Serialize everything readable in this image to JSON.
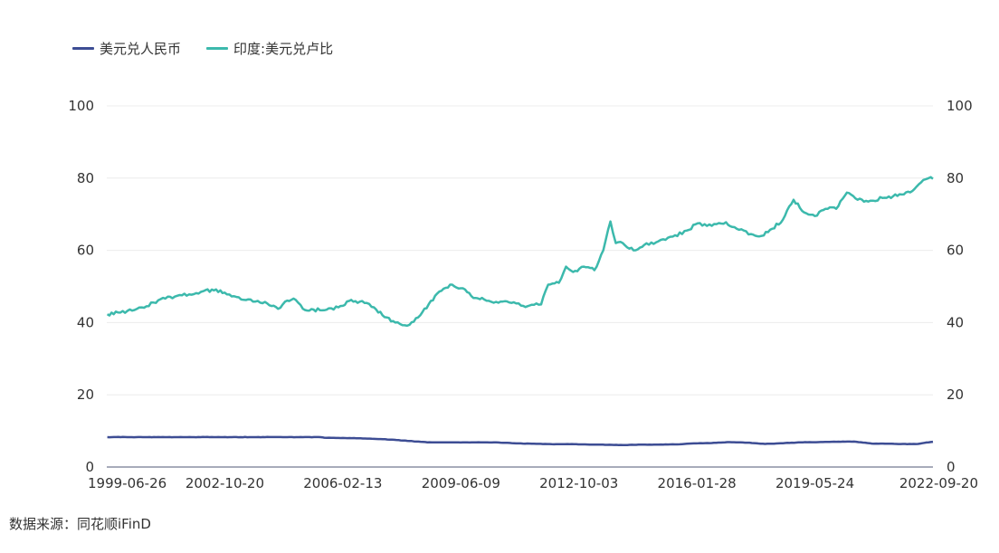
{
  "legend": {
    "items": [
      {
        "label": "美元兑人民币",
        "color": "#3d4d94"
      },
      {
        "label": "印度:美元兑卢比",
        "color": "#3cb9ac"
      }
    ]
  },
  "source": "数据来源：同花顺iFinD",
  "chart_data": {
    "type": "line",
    "title": "",
    "xlabel": "",
    "ylabel": "",
    "x_ticks": [
      "1999-06-26",
      "2002-10-20",
      "2006-02-13",
      "2009-06-09",
      "2012-10-03",
      "2016-01-28",
      "2019-05-24",
      "2022-09-20"
    ],
    "y_left_ticks": [
      0,
      20,
      40,
      60,
      80,
      100
    ],
    "y_right_ticks": [
      0,
      20,
      40,
      60,
      80,
      100
    ],
    "ylim": [
      0,
      100
    ],
    "grid": true,
    "legend_position": "top-left",
    "series": [
      {
        "name": "美元兑人民币",
        "axis": "left",
        "x": [
          1999.5,
          2000.5,
          2001.5,
          2002.5,
          2003.5,
          2004.5,
          2005.5,
          2005.6,
          2006.0,
          2006.5,
          2007.0,
          2007.5,
          2008.0,
          2008.5,
          2009.0,
          2010.0,
          2010.5,
          2011.0,
          2011.5,
          2012.0,
          2012.5,
          2013.0,
          2013.5,
          2014.0,
          2014.5,
          2015.0,
          2015.6,
          2016.0,
          2016.5,
          2017.0,
          2017.5,
          2018.0,
          2018.5,
          2019.0,
          2019.5,
          2020.0,
          2020.5,
          2021.0,
          2021.5,
          2022.0,
          2022.3,
          2022.6,
          2022.72
        ],
        "values": [
          8.28,
          8.28,
          8.28,
          8.28,
          8.28,
          8.28,
          8.28,
          8.11,
          8.05,
          7.98,
          7.8,
          7.6,
          7.2,
          6.85,
          6.83,
          6.83,
          6.78,
          6.55,
          6.45,
          6.32,
          6.35,
          6.25,
          6.15,
          6.1,
          6.18,
          6.2,
          6.3,
          6.55,
          6.65,
          6.9,
          6.75,
          6.4,
          6.6,
          6.85,
          6.9,
          7.0,
          7.05,
          6.5,
          6.45,
          6.35,
          6.4,
          6.85,
          7.0
        ]
      },
      {
        "name": "印度:美元兑卢比",
        "axis": "right",
        "x": [
          1999.5,
          1999.8,
          2000.2,
          2000.6,
          2001.0,
          2001.4,
          2001.8,
          2002.2,
          2002.5,
          2002.8,
          2003.2,
          2003.6,
          2004.0,
          2004.3,
          2004.5,
          2004.8,
          2005.0,
          2005.3,
          2005.6,
          2006.0,
          2006.3,
          2006.6,
          2007.0,
          2007.3,
          2007.6,
          2008.0,
          2008.3,
          2008.6,
          2008.9,
          2009.2,
          2009.5,
          2009.8,
          2010.1,
          2010.5,
          2010.8,
          2011.2,
          2011.5,
          2011.7,
          2011.9,
          2012.2,
          2012.4,
          2012.6,
          2012.9,
          2013.2,
          2013.45,
          2013.65,
          2013.8,
          2014.0,
          2014.3,
          2014.6,
          2015.0,
          2015.4,
          2015.8,
          2016.1,
          2016.5,
          2016.9,
          2017.2,
          2017.6,
          2017.9,
          2018.2,
          2018.5,
          2018.8,
          2019.1,
          2019.4,
          2019.7,
          2020.0,
          2020.3,
          2020.6,
          2020.9,
          2021.3,
          2021.6,
          2021.9,
          2022.2,
          2022.45,
          2022.6,
          2022.72
        ],
        "values": [
          42.3,
          42.8,
          43.3,
          44.5,
          46.5,
          47.2,
          47.8,
          48.7,
          48.9,
          48.3,
          47.0,
          45.8,
          45.3,
          43.8,
          45.8,
          46.3,
          43.8,
          43.6,
          43.4,
          44.2,
          46.0,
          45.8,
          44.2,
          41.5,
          40.0,
          39.4,
          42.0,
          46.0,
          48.8,
          50.5,
          49.5,
          46.8,
          46.4,
          45.5,
          45.6,
          44.6,
          44.9,
          45.0,
          50.5,
          51.0,
          55.5,
          54.0,
          55.5,
          54.5,
          60.0,
          68.0,
          62.0,
          62.0,
          60.0,
          61.5,
          62.5,
          63.8,
          65.5,
          67.5,
          66.8,
          67.8,
          66.0,
          64.5,
          64.0,
          66.0,
          68.5,
          74.0,
          70.5,
          69.5,
          71.5,
          71.5,
          76.0,
          74.0,
          73.5,
          74.5,
          75.0,
          75.5,
          77.0,
          79.5,
          80.0,
          79.8
        ]
      }
    ]
  }
}
